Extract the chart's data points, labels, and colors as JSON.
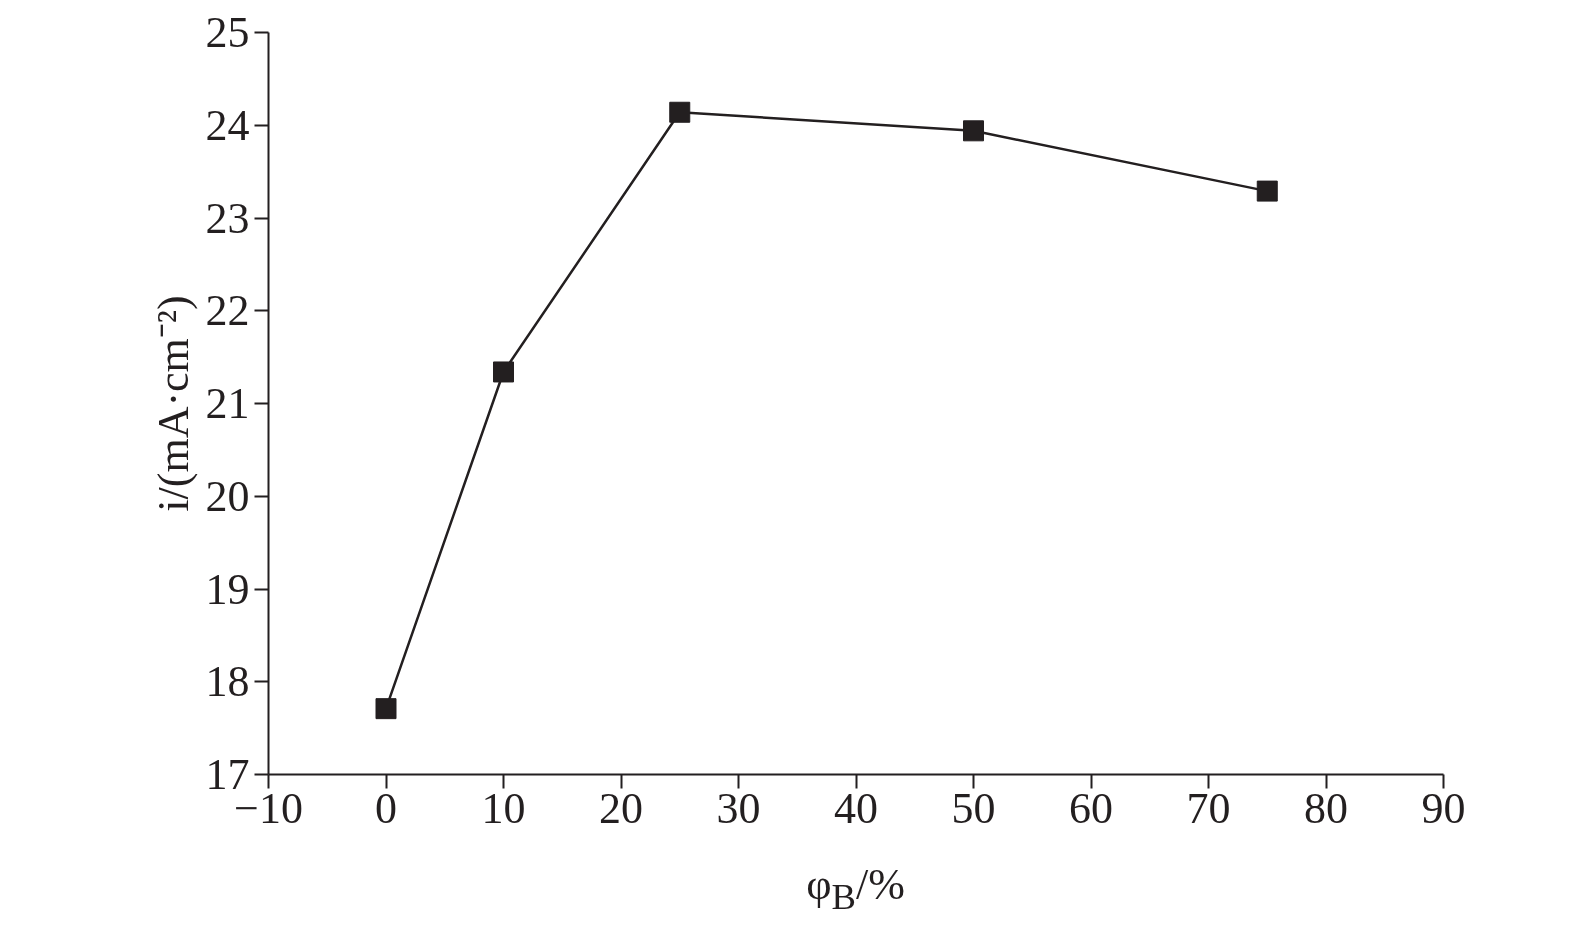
{
  "chart_data": {
    "type": "line",
    "xlabel": "φ$_{B}$/%",
    "ylabel": "i/(mA·cm⁻²)",
    "x": [
      0,
      10,
      25,
      50,
      75
    ],
    "series": [
      {
        "color": "#231f20",
        "values": [
          17.71,
          21.34,
          24.14,
          23.94,
          23.29
        ]
      }
    ],
    "xlim": [
      -10,
      90
    ],
    "ylim": [
      17,
      25
    ],
    "xticks": [
      {
        "value": -10,
        "label": "−10"
      },
      0,
      10,
      20,
      30,
      40,
      50,
      60,
      70,
      80,
      90
    ],
    "yticks": [
      17,
      18,
      19,
      20,
      21,
      22,
      23,
      24,
      25
    ],
    "marker": "square",
    "line_style": "solid",
    "grid": false
  }
}
